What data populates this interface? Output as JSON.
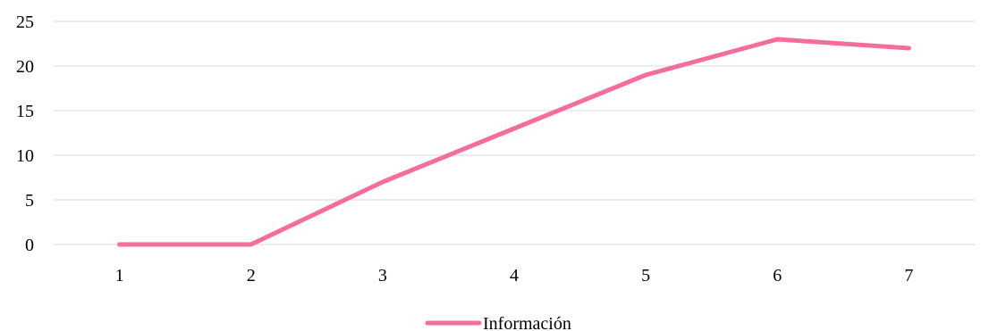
{
  "chart_data": {
    "type": "line",
    "x": [
      1,
      2,
      3,
      4,
      5,
      6,
      7
    ],
    "series": [
      {
        "name": "Información",
        "color": "#f46d9b",
        "values": [
          0,
          0,
          7,
          13,
          19,
          23,
          22
        ]
      }
    ],
    "yticks": [
      "0",
      "5",
      "10",
      "15",
      "20",
      "25"
    ],
    "xticks": [
      "1",
      "2",
      "3",
      "4",
      "5",
      "6",
      "7"
    ],
    "ylim": [
      0,
      25
    ],
    "grid": true,
    "legend_position": "bottom"
  }
}
